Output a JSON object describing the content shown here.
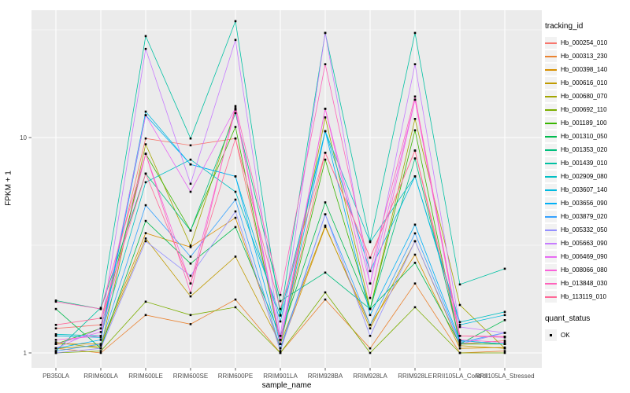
{
  "chart_data": {
    "type": "line",
    "title": "",
    "xlabel": "sample_name",
    "ylabel": "FPKM + 1",
    "legend_title": "tracking_id",
    "quant_legend": {
      "title": "quant_status",
      "items": [
        {
          "label": "OK",
          "marker": "black-square"
        }
      ]
    },
    "x_categories": [
      "PB350LA",
      "RRIM600LA",
      "RRIM600LE",
      "RRIM600SE",
      "RRIM600PE",
      "RRIM901LA",
      "RRIM928BA",
      "RRIM928LA",
      "RRIM928LE",
      "RRII105LA_Control",
      "RRII105LA_Stressed"
    ],
    "y_axis": {
      "scale": "log10",
      "tick_values": [
        1,
        10
      ],
      "tick_labels": [
        "1",
        "10"
      ],
      "minor_breaks": [
        3.1623,
        31.623
      ],
      "ylim": [
        0.88,
        39
      ]
    },
    "grid": "on",
    "legend_position": "right",
    "style": {
      "panel_bg": "#EBEBEB",
      "grid_color": "#FFFFFF",
      "point_color": "#000000",
      "tick_label_color": "#4D4D4D",
      "tick_color": "#333333",
      "key_bg": "#F2F2F2"
    },
    "series": [
      {
        "name": "Hb_000254_010",
        "color": "#F8766D",
        "values": [
          1.3,
          1.35,
          9.9,
          9.2,
          9.9,
          1.15,
          8.5,
          2.77,
          8.7,
          1.1,
          1.14
        ]
      },
      {
        "name": "Hb_000313_230",
        "color": "#EA8331",
        "values": [
          1.05,
          1.0,
          1.5,
          1.36,
          1.77,
          1.0,
          1.77,
          1.05,
          2.1,
          1.0,
          1.02
        ]
      },
      {
        "name": "Hb_000398_140",
        "color": "#D89000",
        "values": [
          1.1,
          1.1,
          3.6,
          3.1,
          4.24,
          1.05,
          3.85,
          1.35,
          2.86,
          1.05,
          1.06
        ]
      },
      {
        "name": "Hb_000616_010",
        "color": "#C09B00",
        "values": [
          1.05,
          1.08,
          3.4,
          1.83,
          2.8,
          1.1,
          3.9,
          1.3,
          3.3,
          1.08,
          1.05
        ]
      },
      {
        "name": "Hb_000680_070",
        "color": "#A3A500",
        "values": [
          1.12,
          1.05,
          9.3,
          3.15,
          13.5,
          1.1,
          12.4,
          1.6,
          12.2,
          1.67,
          1.05
        ]
      },
      {
        "name": "Hb_000692_110",
        "color": "#7CAE00",
        "values": [
          1.0,
          1.02,
          1.73,
          1.5,
          1.63,
          1.0,
          1.91,
          1.0,
          1.63,
          1.0,
          1.0
        ]
      },
      {
        "name": "Hb_001189_100",
        "color": "#39B600",
        "values": [
          1.1,
          1.3,
          8.4,
          3.7,
          11.2,
          1.1,
          7.9,
          1.6,
          10.8,
          1.1,
          1.1
        ]
      },
      {
        "name": "Hb_001310_050",
        "color": "#00BB4E",
        "values": [
          1.6,
          1.05,
          4.1,
          2.6,
          3.84,
          1.2,
          5.0,
          1.6,
          2.62,
          1.1,
          1.42
        ]
      },
      {
        "name": "Hb_001353_020",
        "color": "#00BF7D",
        "values": [
          1.75,
          1.6,
          6.8,
          3.7,
          13.0,
          1.74,
          2.36,
          1.6,
          8.0,
          1.14,
          1.1
        ]
      },
      {
        "name": "Hb_001439_010",
        "color": "#00C1A3",
        "values": [
          1.02,
          1.62,
          29.6,
          9.9,
          34.7,
          1.5,
          30.6,
          3.3,
          30.6,
          2.08,
          2.46
        ]
      },
      {
        "name": "Hb_002909_080",
        "color": "#00BFC4",
        "values": [
          1.22,
          1.2,
          6.2,
          7.9,
          5.6,
          1.49,
          10.7,
          3.27,
          6.6,
          1.39,
          1.55
        ]
      },
      {
        "name": "Hb_003607_140",
        "color": "#00BAE0",
        "values": [
          1.2,
          1.18,
          13.2,
          7.5,
          6.6,
          1.4,
          10.7,
          2.4,
          6.6,
          1.35,
          1.5
        ]
      },
      {
        "name": "Hb_003656_090",
        "color": "#00B0F6",
        "values": [
          1.05,
          1.15,
          12.7,
          7.5,
          6.6,
          1.1,
          10.7,
          1.5,
          3.94,
          1.14,
          1.1
        ]
      },
      {
        "name": "Hb_003879_020",
        "color": "#35A2FF",
        "values": [
          1.02,
          1.1,
          4.85,
          2.8,
          5.15,
          1.05,
          4.4,
          1.35,
          3.59,
          1.12,
          1.24
        ]
      },
      {
        "name": "Hb_005332_050",
        "color": "#9590FF",
        "values": [
          1.0,
          1.05,
          3.3,
          2.28,
          4.54,
          1.02,
          4.4,
          1.2,
          3.3,
          1.1,
          1.24
        ]
      },
      {
        "name": "Hb_005663_090",
        "color": "#C77CFF",
        "values": [
          1.05,
          1.3,
          25.8,
          6.1,
          28.4,
          1.2,
          30.6,
          2.1,
          21.9,
          1.32,
          1.24
        ]
      },
      {
        "name": "Hb_006469_090",
        "color": "#E76BF3",
        "values": [
          1.1,
          1.25,
          12.7,
          5.6,
          13.7,
          1.15,
          13.6,
          2.1,
          15.0,
          1.2,
          1.18
        ]
      },
      {
        "name": "Hb_008066_080",
        "color": "#FA62DB",
        "values": [
          1.15,
          1.2,
          8.4,
          2.1,
          13.5,
          1.1,
          13.6,
          1.8,
          15.0,
          1.15,
          1.12
        ]
      },
      {
        "name": "Hb_013848_030",
        "color": "#FF62BC",
        "values": [
          1.73,
          1.6,
          8.4,
          1.9,
          14.0,
          1.86,
          21.9,
          2.4,
          15.5,
          1.2,
          1.19
        ]
      },
      {
        "name": "Hb_113119_010",
        "color": "#FF6A98",
        "values": [
          1.35,
          1.45,
          6.8,
          2.1,
          9.9,
          1.6,
          8.5,
          2.77,
          8.7,
          1.2,
          1.19
        ]
      }
    ]
  }
}
